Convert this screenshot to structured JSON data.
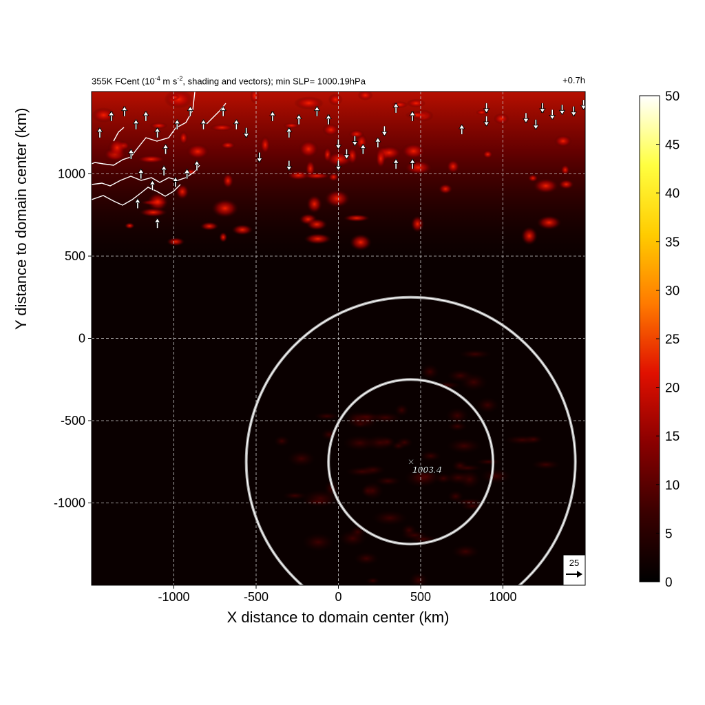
{
  "title": {
    "left_prefix": "355K FCent (10",
    "left_exp1": "-4",
    "left_mid": " m s",
    "left_exp2": "-2",
    "left_suffix": ", shading and vectors); min SLP= 1000.19hPa",
    "right": "+0.7h"
  },
  "chart_data": {
    "type": "heatmap",
    "xlabel": "X distance to domain center (km)",
    "ylabel": "Y distance to domain center (km)",
    "xlim": [
      -1500,
      1500
    ],
    "ylim": [
      -1500,
      1500
    ],
    "xticks": [
      -1000,
      -500,
      0,
      500,
      1000
    ],
    "yticks": [
      -1000,
      -500,
      0,
      500,
      1000
    ],
    "xtick_labels": [
      "-1000",
      "-500",
      "0",
      "500",
      "1000"
    ],
    "ytick_labels": [
      "-1000",
      "-500",
      "0",
      "500",
      "1000"
    ],
    "grid": true,
    "colorbar": {
      "min": 0,
      "max": 50,
      "ticks": [
        "0",
        "5",
        "10",
        "15",
        "20",
        "25",
        "30",
        "35",
        "40",
        "45",
        "50"
      ],
      "colors": [
        "#000000",
        "#3a0000",
        "#8a0000",
        "#e01000",
        "#ff7a00",
        "#ffcc00",
        "#ffff40",
        "#ffffff"
      ]
    },
    "center_marker": {
      "x": 440,
      "y": -750,
      "label": "1003.4"
    },
    "rings_km": [
      500,
      1000
    ],
    "vector_key": {
      "label": "25"
    },
    "high_region": {
      "x_range": [
        -1500,
        1500
      ],
      "y_range": [
        700,
        1500
      ]
    },
    "vectors": [
      {
        "x": -1450,
        "y": 1250,
        "u": 0,
        "v": 1
      },
      {
        "x": -1380,
        "y": 1350,
        "u": 0,
        "v": 1
      },
      {
        "x": -1300,
        "y": 1380,
        "u": 0,
        "v": 1
      },
      {
        "x": -1230,
        "y": 1300,
        "u": 0,
        "v": 1
      },
      {
        "x": -1170,
        "y": 1350,
        "u": 0,
        "v": 1
      },
      {
        "x": -1100,
        "y": 1250,
        "u": 0,
        "v": 1
      },
      {
        "x": -1050,
        "y": 1150,
        "u": 0,
        "v": 1
      },
      {
        "x": -1260,
        "y": 1120,
        "u": 0,
        "v": 1
      },
      {
        "x": -1200,
        "y": 1000,
        "u": 0,
        "v": 1
      },
      {
        "x": -1130,
        "y": 930,
        "u": 0,
        "v": 1
      },
      {
        "x": -1060,
        "y": 1020,
        "u": 0,
        "v": 1
      },
      {
        "x": -990,
        "y": 950,
        "u": 0,
        "v": 1
      },
      {
        "x": -920,
        "y": 1000,
        "u": 0,
        "v": 1
      },
      {
        "x": -860,
        "y": 1050,
        "u": 0,
        "v": 1
      },
      {
        "x": -1220,
        "y": 820,
        "u": 0,
        "v": 1
      },
      {
        "x": -1100,
        "y": 700,
        "u": 0,
        "v": 1
      },
      {
        "x": -980,
        "y": 1300,
        "u": 0,
        "v": 1
      },
      {
        "x": -900,
        "y": 1380,
        "u": 0,
        "v": 1
      },
      {
        "x": -820,
        "y": 1300,
        "u": 0,
        "v": 1
      },
      {
        "x": -700,
        "y": 1380,
        "u": 0,
        "v": 1
      },
      {
        "x": -620,
        "y": 1300,
        "u": 0,
        "v": 1
      },
      {
        "x": -560,
        "y": 1250,
        "u": 0,
        "v": -1
      },
      {
        "x": -400,
        "y": 1350,
        "u": 0,
        "v": 1
      },
      {
        "x": -300,
        "y": 1250,
        "u": 0,
        "v": 1
      },
      {
        "x": -240,
        "y": 1330,
        "u": 0,
        "v": 1
      },
      {
        "x": -130,
        "y": 1380,
        "u": 0,
        "v": 1
      },
      {
        "x": -60,
        "y": 1330,
        "u": 0,
        "v": 1
      },
      {
        "x": 0,
        "y": 1180,
        "u": 0,
        "v": -1
      },
      {
        "x": 50,
        "y": 1120,
        "u": 0,
        "v": -1
      },
      {
        "x": 100,
        "y": 1200,
        "u": 0,
        "v": -1
      },
      {
        "x": 150,
        "y": 1150,
        "u": 0,
        "v": 1
      },
      {
        "x": 240,
        "y": 1190,
        "u": 0,
        "v": 1
      },
      {
        "x": 280,
        "y": 1260,
        "u": 0,
        "v": -1
      },
      {
        "x": 350,
        "y": 1400,
        "u": 0,
        "v": 1
      },
      {
        "x": 450,
        "y": 1350,
        "u": 0,
        "v": 1
      },
      {
        "x": -480,
        "y": 1100,
        "u": 0,
        "v": -1
      },
      {
        "x": -300,
        "y": 1050,
        "u": 0,
        "v": -1
      },
      {
        "x": 0,
        "y": 1050,
        "u": 0,
        "v": -1
      },
      {
        "x": 350,
        "y": 1060,
        "u": 0,
        "v": 1
      },
      {
        "x": 450,
        "y": 1060,
        "u": 0,
        "v": 1
      },
      {
        "x": 750,
        "y": 1270,
        "u": 0,
        "v": 1
      },
      {
        "x": 900,
        "y": 1400,
        "u": 0,
        "v": -1
      },
      {
        "x": 900,
        "y": 1320,
        "u": 0,
        "v": -1
      },
      {
        "x": 1140,
        "y": 1340,
        "u": 0,
        "v": -1
      },
      {
        "x": 1200,
        "y": 1300,
        "u": 0,
        "v": -1
      },
      {
        "x": 1240,
        "y": 1400,
        "u": 0,
        "v": -1
      },
      {
        "x": 1300,
        "y": 1360,
        "u": 0,
        "v": -1
      },
      {
        "x": 1360,
        "y": 1390,
        "u": 0,
        "v": -1
      },
      {
        "x": 1430,
        "y": 1380,
        "u": 0,
        "v": -1
      },
      {
        "x": 1490,
        "y": 1420,
        "u": 0,
        "v": -1
      }
    ]
  }
}
